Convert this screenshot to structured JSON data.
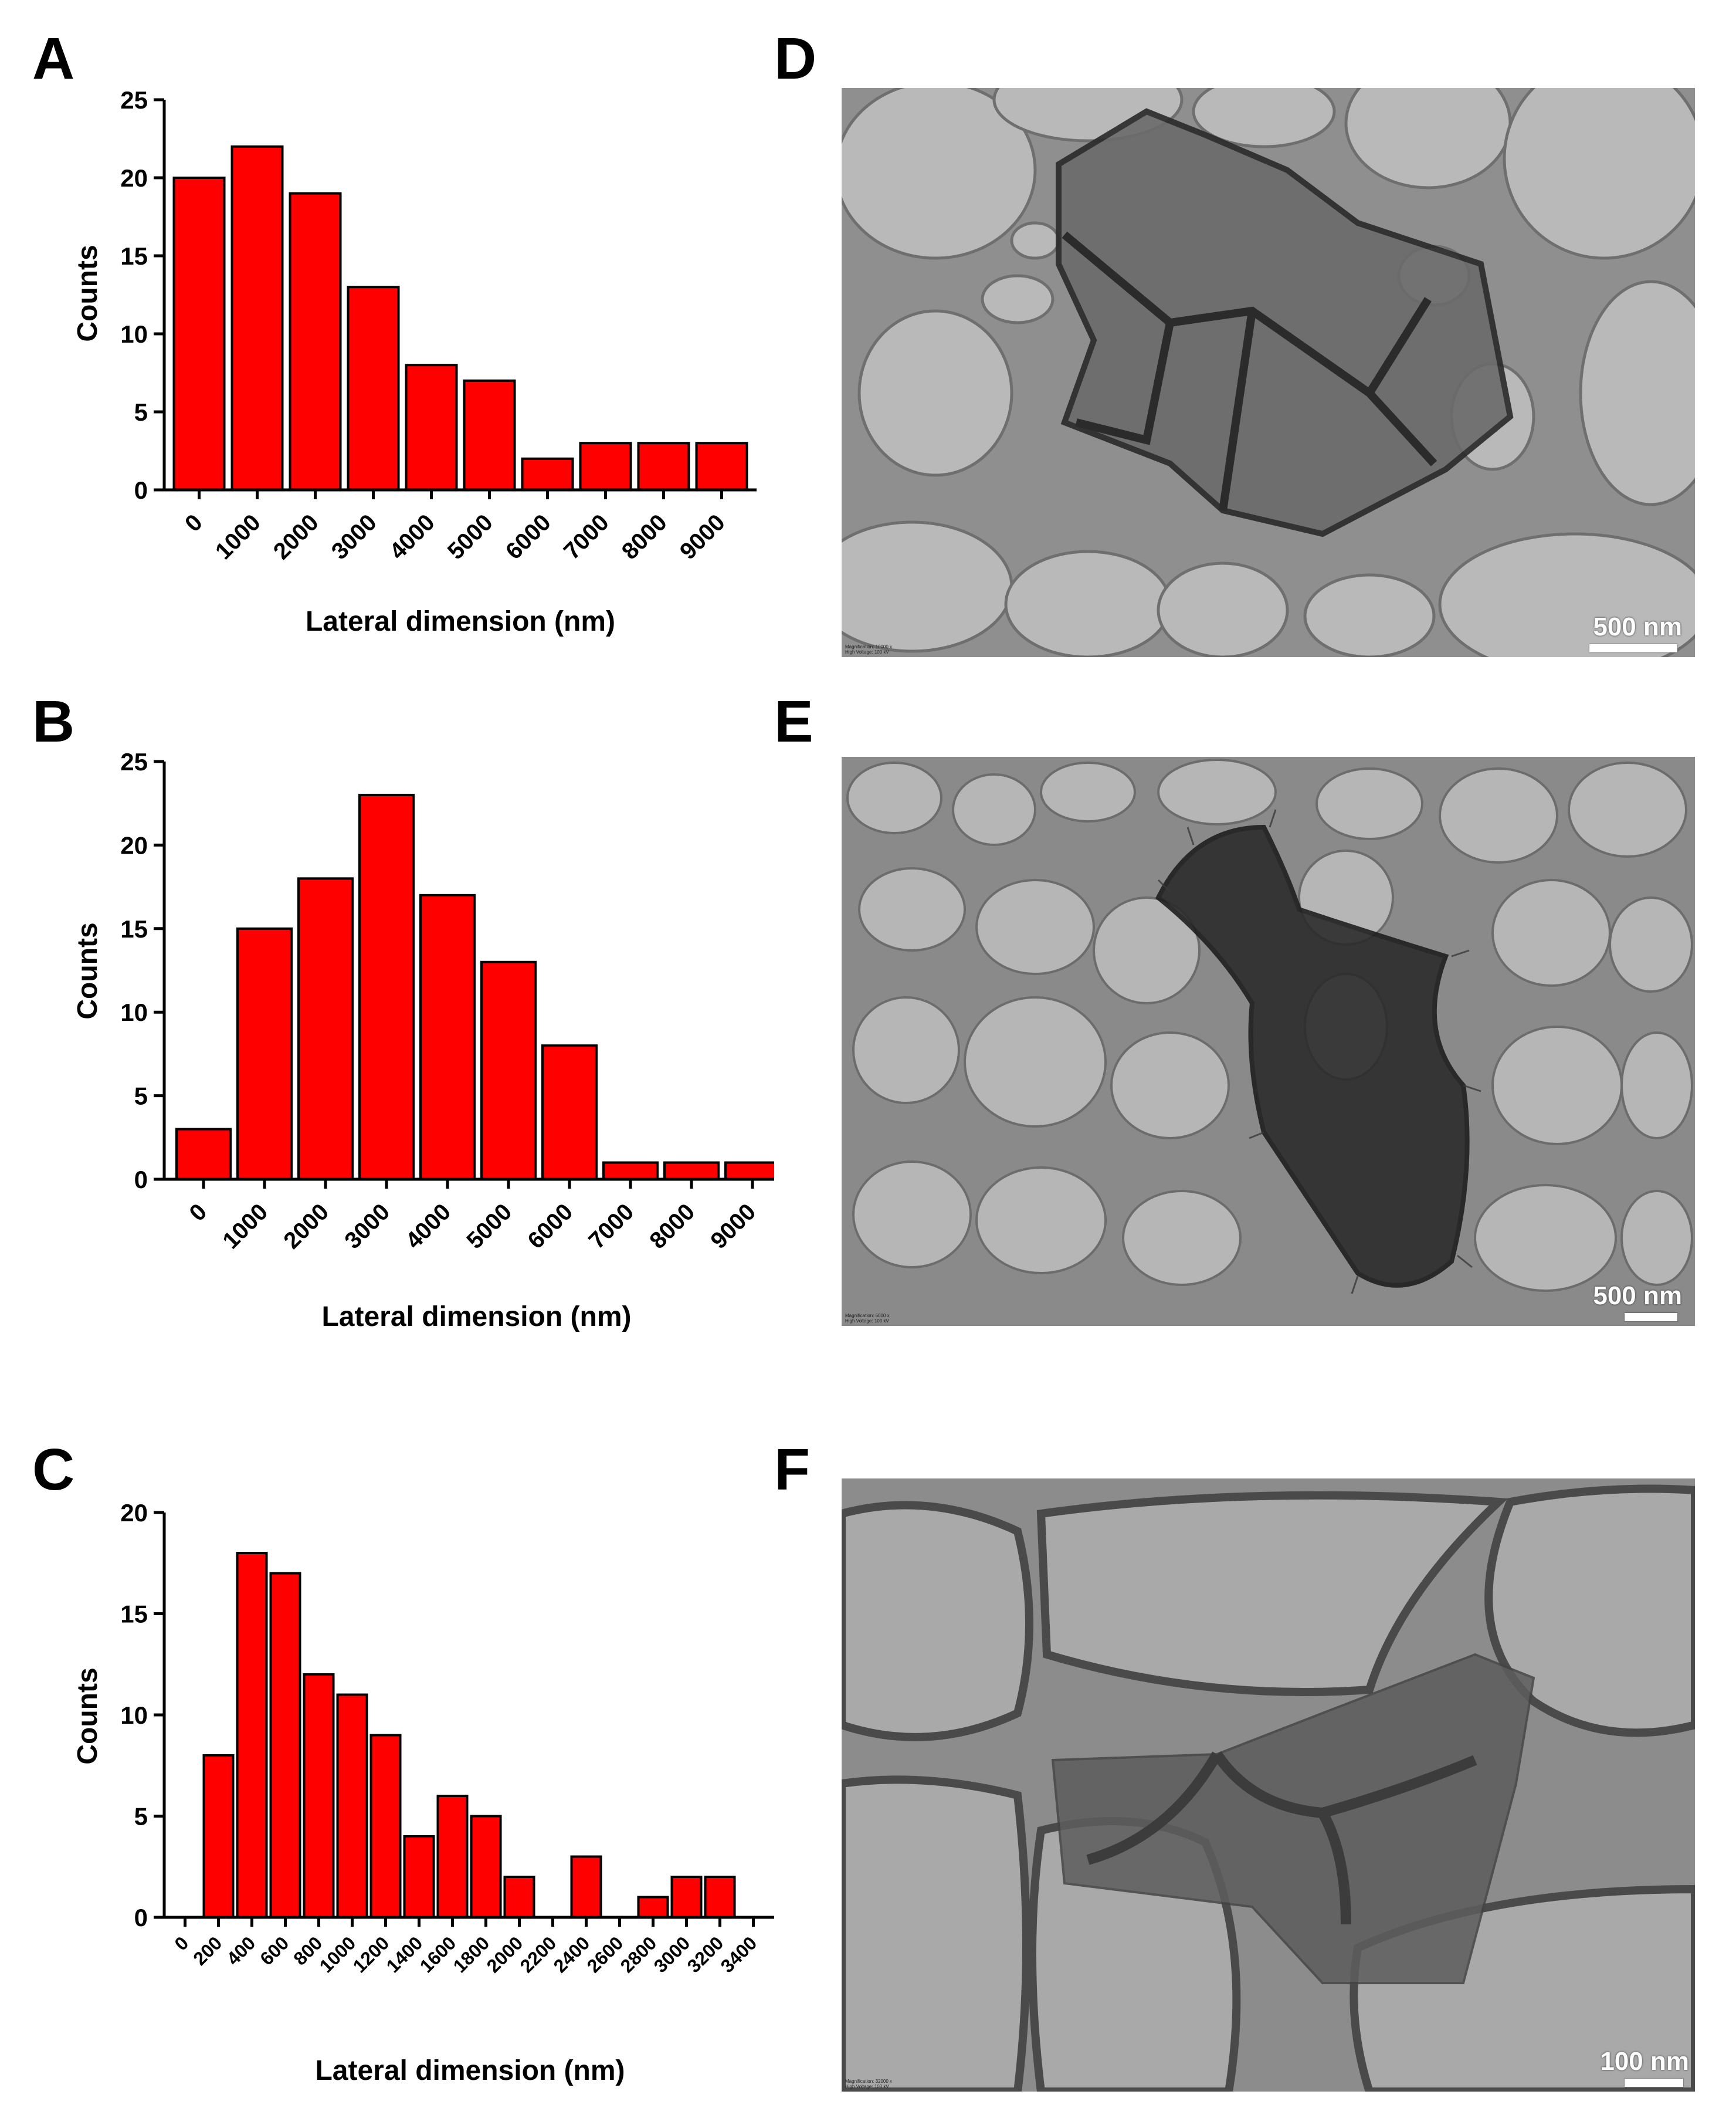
{
  "panels": {
    "A": "A",
    "B": "B",
    "C": "C",
    "D": "D",
    "E": "E",
    "F": "F"
  },
  "chart_data": [
    {
      "id": "A",
      "type": "bar",
      "categories": [
        "0",
        "1000",
        "2000",
        "3000",
        "4000",
        "5000",
        "6000",
        "7000",
        "8000",
        "9000"
      ],
      "values": [
        20,
        22,
        19,
        13,
        8,
        7,
        2,
        3,
        3,
        3
      ],
      "xlabel": "Lateral dimension (nm)",
      "ylabel": "Counts",
      "ylim": [
        0,
        25
      ],
      "yticks": [
        0,
        5,
        10,
        15,
        20,
        25
      ],
      "bar_color": "#ff0000"
    },
    {
      "id": "B",
      "type": "bar",
      "categories": [
        "0",
        "1000",
        "2000",
        "3000",
        "4000",
        "5000",
        "6000",
        "7000",
        "8000",
        "9000"
      ],
      "values": [
        3,
        15,
        18,
        23,
        17,
        13,
        8,
        1,
        1,
        1
      ],
      "xlabel": "Lateral dimension (nm)",
      "ylabel": "Counts",
      "ylim": [
        0,
        25
      ],
      "yticks": [
        0,
        5,
        10,
        15,
        20,
        25
      ],
      "bar_color": "#ff0000"
    },
    {
      "id": "C",
      "type": "bar",
      "categories": [
        "0",
        "200",
        "400",
        "600",
        "800",
        "1000",
        "1200",
        "1400",
        "1600",
        "1800",
        "2000",
        "2200",
        "2400",
        "2600",
        "2800",
        "3000",
        "3200",
        "3400"
      ],
      "values": [
        0,
        8,
        18,
        17,
        12,
        11,
        9,
        4,
        6,
        5,
        2,
        0,
        3,
        0,
        1,
        2,
        2,
        0
      ],
      "xlabel": "Lateral dimension (nm)",
      "ylabel": "Counts",
      "ylim": [
        0,
        20
      ],
      "yticks": [
        0,
        5,
        10,
        15,
        20
      ],
      "bar_color": "#ff0000"
    }
  ],
  "images": {
    "D": {
      "scale_label": "500 nm",
      "meta_line1": "Magnification: 10000 x",
      "meta_line2": "High Voltage: 100 kV"
    },
    "E": {
      "scale_label": "500 nm",
      "meta_line1": "Magnification: 6000 x",
      "meta_line2": "High Voltage: 100 kV"
    },
    "F": {
      "scale_label": "100 nm",
      "meta_line1": "Magnification: 32000 x",
      "meta_line2": "High Voltage: 100 kV"
    }
  }
}
